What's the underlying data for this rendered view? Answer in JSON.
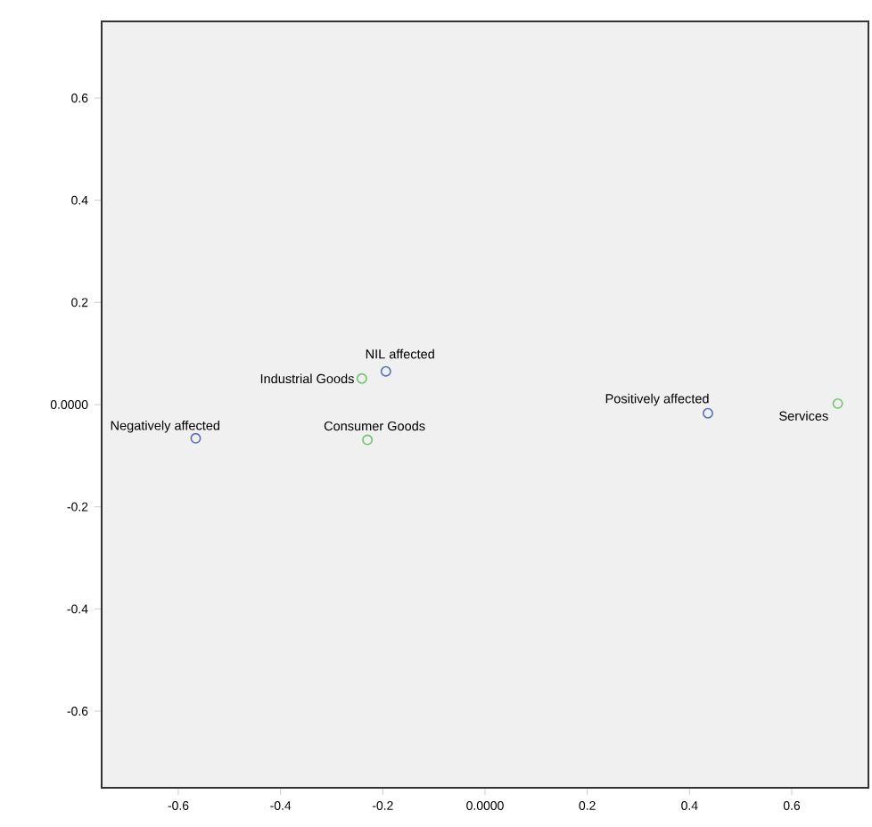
{
  "chart_data": {
    "type": "scatter",
    "marker": "circle",
    "grid": false,
    "xlim": [
      -0.75,
      0.75
    ],
    "ylim": [
      -0.75,
      0.75
    ],
    "xticks": [
      -0.6,
      -0.4,
      -0.2,
      {
        "value": 0,
        "label": "0.0000"
      },
      0.2,
      0.4,
      0.6
    ],
    "yticks": [
      -0.6,
      -0.4,
      -0.2,
      {
        "value": 0,
        "label": "0.0000"
      },
      0.2,
      0.4,
      0.6
    ],
    "series": [
      {
        "color": "#5a6dc0",
        "x": [
          -0.566,
          -0.194,
          0.436
        ],
        "values": [
          -0.066,
          0.065,
          -0.017
        ]
      },
      {
        "color": "#6cc56c",
        "x": [
          -0.241,
          -0.23,
          0.69
        ],
        "values": [
          0.051,
          -0.069,
          0.002
        ]
      }
    ],
    "annotations": [
      {
        "text": "Negatively affected",
        "x": -0.566,
        "y": -0.066
      },
      {
        "text": "NIL affected",
        "x": -0.194,
        "y": 0.065
      },
      {
        "text": "Positively affected",
        "x": 0.436,
        "y": -0.017
      },
      {
        "text": "Industrial Goods",
        "x": -0.241,
        "y": 0.051
      },
      {
        "text": "Consumer Goods",
        "x": -0.23,
        "y": -0.069
      },
      {
        "text": "Services",
        "x": 0.69,
        "y": 0.002
      }
    ]
  }
}
